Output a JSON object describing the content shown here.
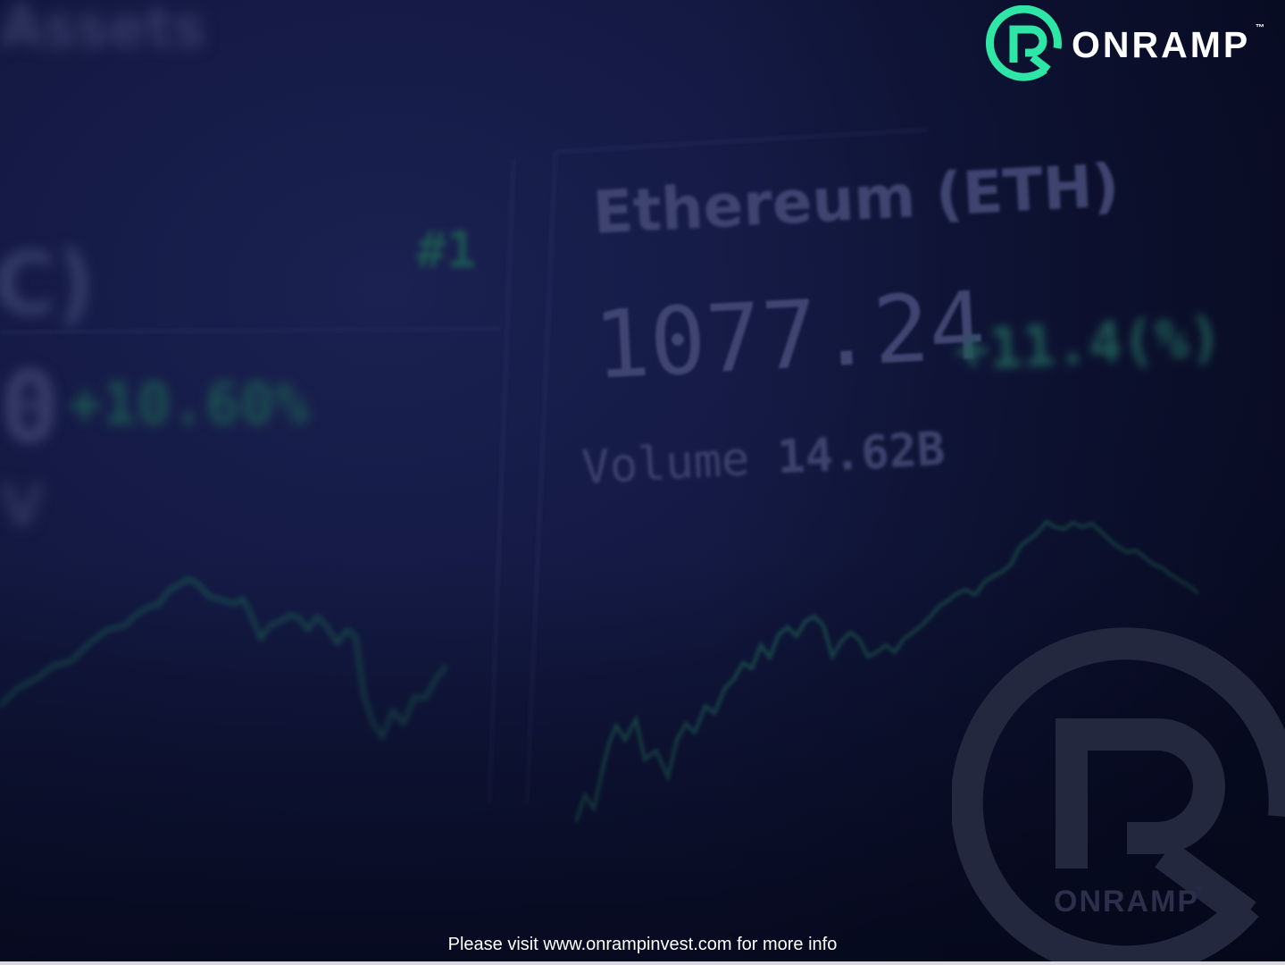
{
  "background": {
    "top_left_text": "Assets",
    "left_card": {
      "name_fragment": "C)",
      "rank": "#1",
      "price_fragment": "0",
      "change": "+10.60%",
      "label_fragment": "V"
    },
    "eth_card": {
      "name": "Ethereum (ETH)",
      "price": "1077.24",
      "change": "+11.4(%)",
      "volume_label": "Volume",
      "volume_value": "14.62B"
    }
  },
  "logo": {
    "text": "ONRAMP",
    "trademark": "™",
    "accent_color": "#2ee6a6"
  },
  "watermark": {
    "text": "ONRAMP",
    "trademark": "™"
  },
  "footer": {
    "text": "Please visit www.onrampinvest.com for more info"
  },
  "colors": {
    "background_dark": "#0b0f2a",
    "chart_line": "#1f5a55",
    "text_white": "#ffffff"
  }
}
